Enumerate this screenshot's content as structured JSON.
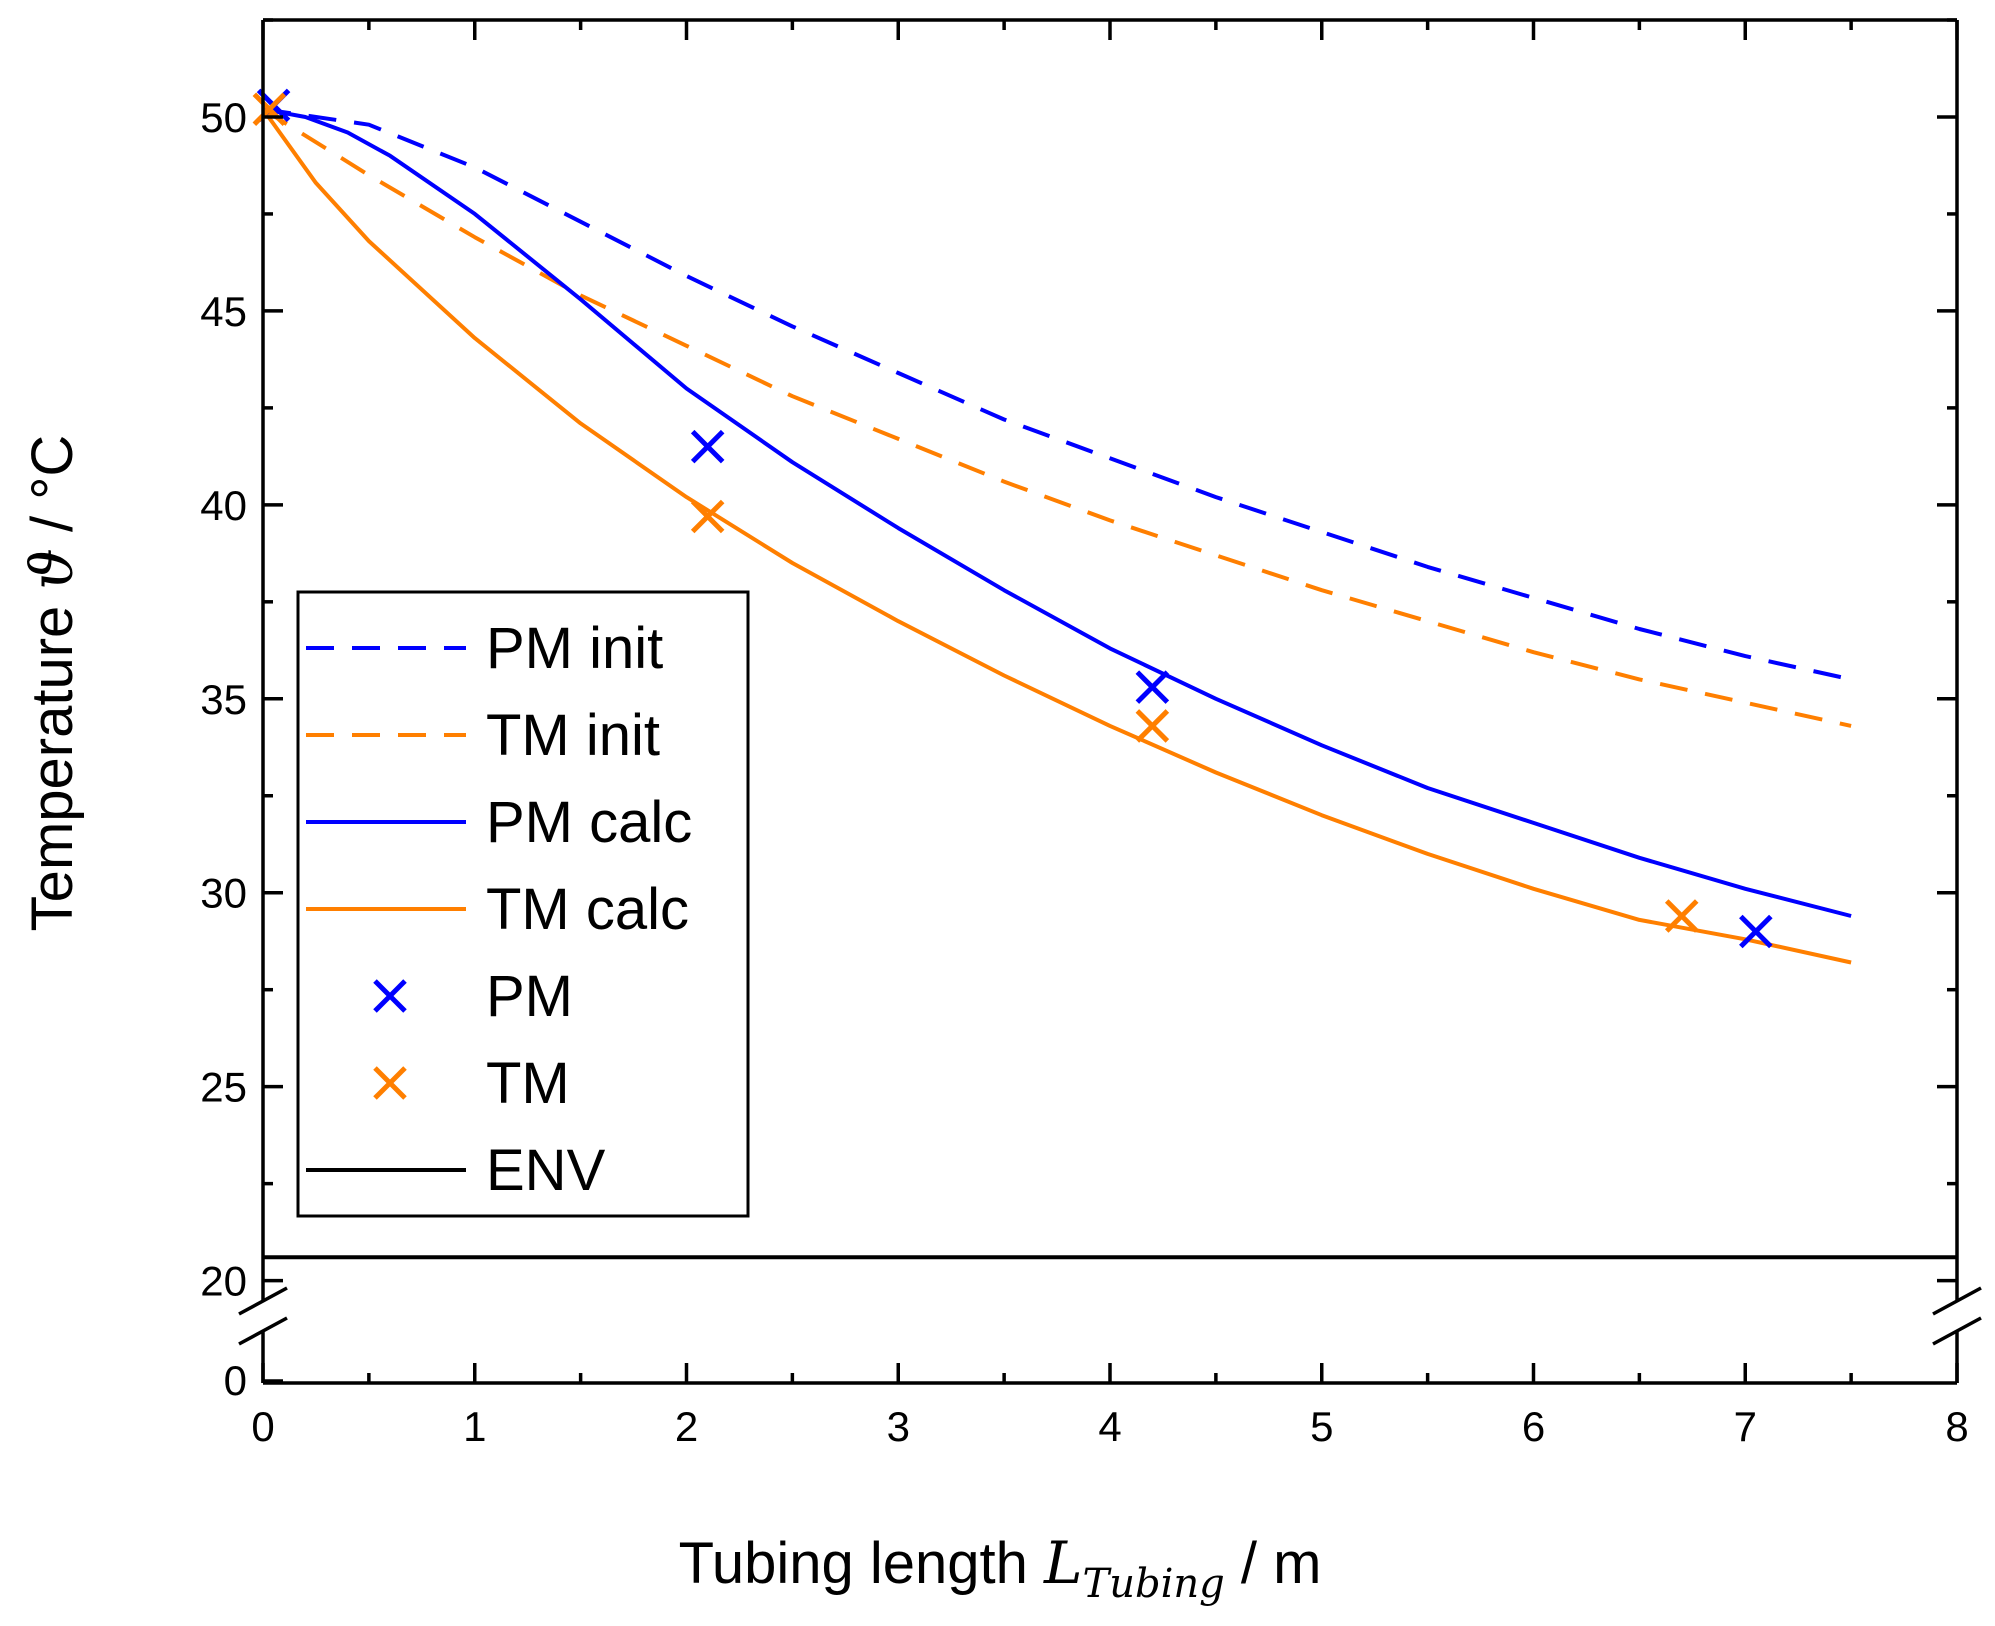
{
  "chart_data": {
    "type": "line",
    "title": "",
    "xlabel": {
      "prefix": "Tubing length ",
      "symbol": "L",
      "subscript": "Tubing",
      "suffix": " / m"
    },
    "ylabel": {
      "prefix": "Temperature ",
      "symbol": "ϑ",
      "suffix": " / °C"
    },
    "xlim": [
      0,
      8
    ],
    "ylim_upper": [
      19.5,
      52.5
    ],
    "ylim_lower_tick": 0,
    "axis_break": true,
    "x_ticks": [
      "0",
      "1",
      "2",
      "3",
      "4",
      "5",
      "6",
      "7",
      "8"
    ],
    "y_ticks": [
      "20",
      "25",
      "30",
      "35",
      "40",
      "45",
      "50"
    ],
    "y_ticks_below_break": [
      "0"
    ],
    "grid": false,
    "legend_position": "lower-left",
    "series": [
      {
        "name": "PM init",
        "style": "dashed",
        "color": "#0000ff",
        "x": [
          0,
          0.5,
          1,
          1.5,
          2,
          2.5,
          3,
          3.5,
          4,
          4.5,
          5,
          5.5,
          6,
          6.5,
          7,
          7.5
        ],
        "y": [
          50.2,
          49.8,
          48.7,
          47.3,
          45.9,
          44.6,
          43.4,
          42.2,
          41.2,
          40.2,
          39.3,
          38.4,
          37.6,
          36.8,
          36.1,
          35.5
        ]
      },
      {
        "name": "TM init",
        "style": "dashed",
        "color": "#ff7f00",
        "x": [
          0,
          0.5,
          1,
          1.5,
          2,
          2.5,
          3,
          3.5,
          4,
          4.5,
          5,
          5.5,
          6,
          6.5,
          7,
          7.5
        ],
        "y": [
          50.2,
          48.5,
          46.9,
          45.4,
          44.1,
          42.8,
          41.7,
          40.6,
          39.6,
          38.7,
          37.8,
          37.0,
          36.2,
          35.5,
          34.9,
          34.3
        ]
      },
      {
        "name": "PM calc",
        "style": "solid",
        "color": "#0000ff",
        "x": [
          0,
          0.2,
          0.4,
          0.6,
          1,
          1.5,
          2,
          2.5,
          3,
          3.5,
          4,
          4.5,
          5,
          5.5,
          6,
          6.5,
          7,
          7.5
        ],
        "y": [
          50.2,
          50.0,
          49.6,
          49.0,
          47.5,
          45.3,
          43.0,
          41.1,
          39.4,
          37.8,
          36.3,
          35.0,
          33.8,
          32.7,
          31.8,
          30.9,
          30.1,
          29.4
        ]
      },
      {
        "name": "TM calc",
        "style": "solid",
        "color": "#ff7f00",
        "x": [
          0,
          0.25,
          0.5,
          1,
          1.5,
          2,
          2.5,
          3,
          3.5,
          4,
          4.5,
          5,
          5.5,
          6,
          6.5,
          7,
          7.5
        ],
        "y": [
          50.2,
          48.3,
          46.8,
          44.3,
          42.1,
          40.2,
          38.5,
          37.0,
          35.6,
          34.3,
          33.1,
          32.0,
          31.0,
          30.1,
          29.3,
          28.8,
          28.2
        ]
      },
      {
        "name": "PM",
        "style": "marker-x",
        "color": "#0000ff",
        "x": [
          0.05,
          2.1,
          4.2,
          7.05
        ],
        "y": [
          50.3,
          41.5,
          35.3,
          29.0
        ]
      },
      {
        "name": "TM",
        "style": "marker-x",
        "color": "#ff7f00",
        "x": [
          0.03,
          2.1,
          4.2,
          6.7
        ],
        "y": [
          50.2,
          39.7,
          34.3,
          29.4
        ]
      },
      {
        "name": "ENV",
        "style": "solid",
        "color": "#000000",
        "x": [
          0,
          8
        ],
        "y": [
          20.6,
          20.6
        ]
      }
    ]
  }
}
